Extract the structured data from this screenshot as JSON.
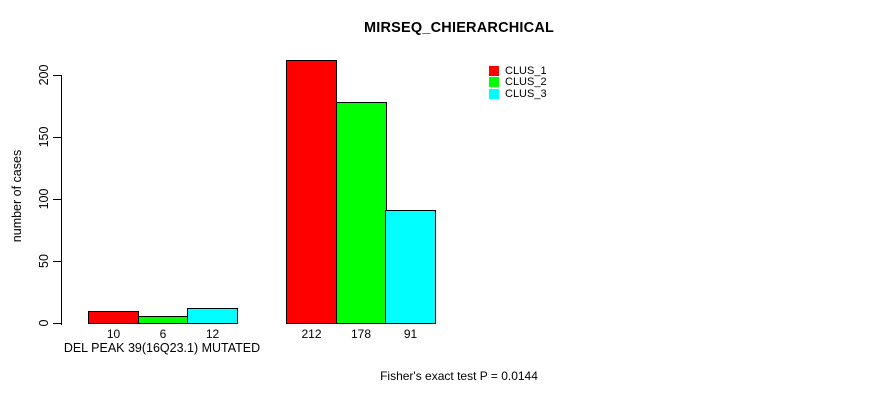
{
  "chart_data": {
    "type": "bar",
    "title": "MIRSEQ_CHIERARCHICAL",
    "ylabel": "number of cases",
    "xlabel": "DEL PEAK 39(16Q23.1) MUTATED",
    "categories": [
      "DEL PEAK 39(16Q23.1) MUTATED",
      ""
    ],
    "series": [
      {
        "name": "CLUS_1",
        "color": "#ff0000",
        "values": [
          10,
          212
        ]
      },
      {
        "name": "CLUS_2",
        "color": "#00ff00",
        "values": [
          6,
          178
        ]
      },
      {
        "name": "CLUS_3",
        "color": "#00ffff",
        "values": [
          12,
          91
        ]
      }
    ],
    "yticks": [
      0,
      50,
      100,
      150,
      200
    ],
    "ylim": [
      0,
      212
    ],
    "grid": false,
    "legend_position": "top-right",
    "bar_value_labels_shown": true,
    "annotation": "Fisher's exact test P = 0.0144"
  },
  "colors": {
    "axis": "#000000",
    "background": "#ffffff"
  }
}
